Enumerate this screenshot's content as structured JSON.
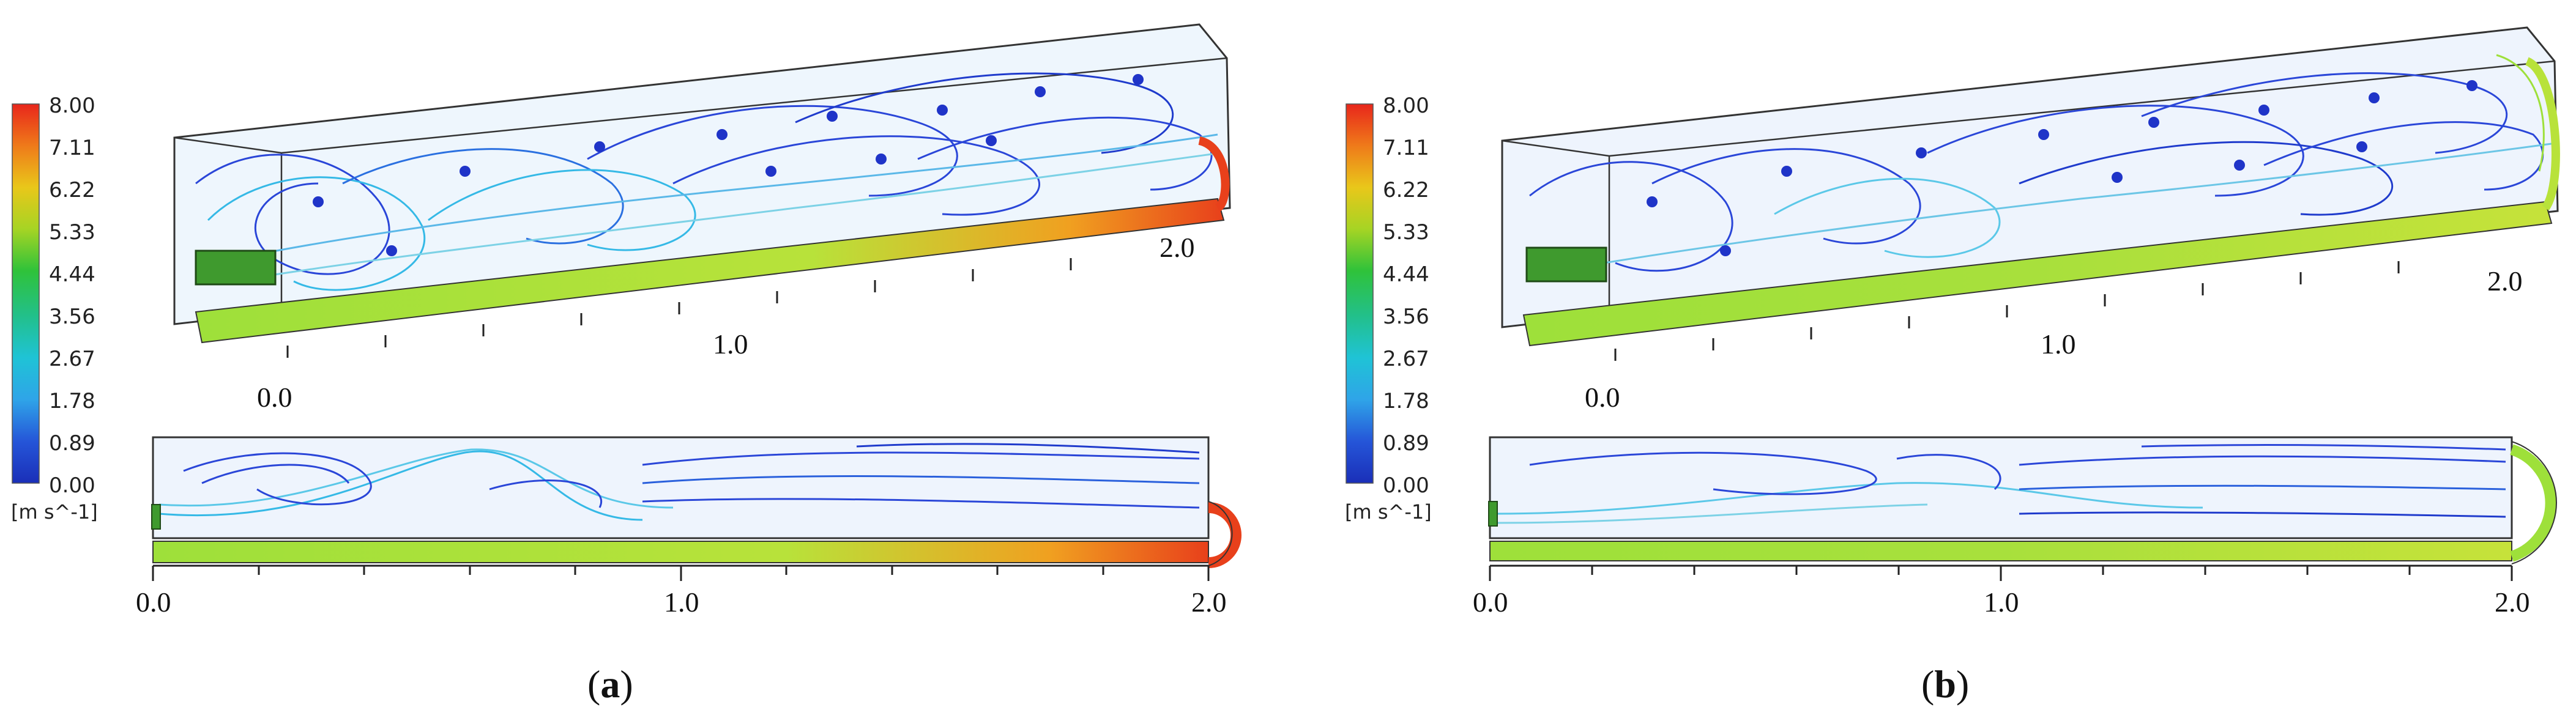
{
  "colorbar": {
    "ticks": [
      "8.00",
      "7.11",
      "6.22",
      "5.33",
      "4.44",
      "3.56",
      "2.67",
      "1.78",
      "0.89",
      "0.00"
    ],
    "unit": "[m s^-1]",
    "colors": [
      "#e8261b",
      "#ef7a1a",
      "#e9c71a",
      "#a6d424",
      "#2fc23a",
      "#22c08b",
      "#1fc3d6",
      "#2fa4e8",
      "#2555d8",
      "#1a2fb8"
    ]
  },
  "panel_a": {
    "label_open": "(",
    "label_letter": "a",
    "label_close": ")",
    "iso_ticks": [
      "0.0",
      "1.0",
      "2.0"
    ],
    "top_ticks": [
      "0.0",
      "1.0",
      "2.0"
    ]
  },
  "panel_b": {
    "label_open": "(",
    "label_letter": "b",
    "label_close": ")",
    "iso_ticks": [
      "0.0",
      "1.0",
      "2.0"
    ],
    "top_ticks": [
      "0.0",
      "1.0",
      "2.0"
    ]
  },
  "colors": {
    "frame": "#333333",
    "inlet": "#3f9a2e",
    "floor_jet": "#9ee03a",
    "streamline_blue": "#2a46d8",
    "streamline_cyan": "#35b9e6"
  }
}
